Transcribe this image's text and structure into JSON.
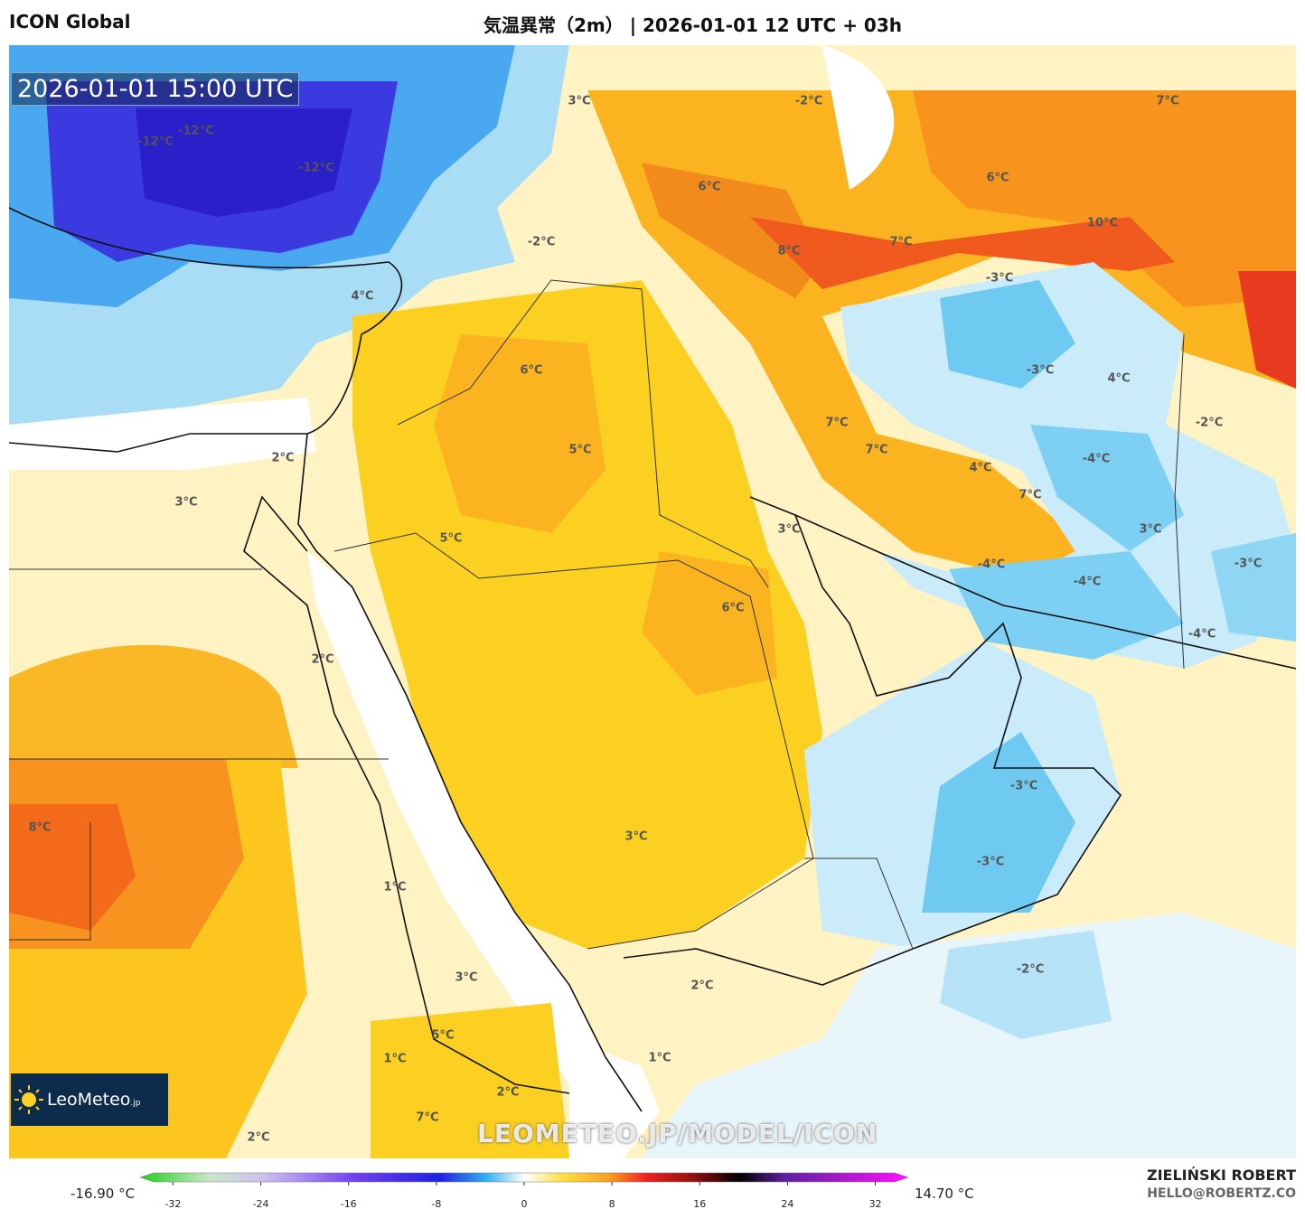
{
  "header": {
    "model": "ICON Global",
    "title": "気温異常（2m） | 2026-01-01 12 UTC + 03h"
  },
  "timestamp": "2026-01-01 15:00 UTC",
  "logo": {
    "name": "LeoMeteo",
    "suffix": ".jp"
  },
  "watermark": "LEOMETEO.JP/MODEL/ICON",
  "map_labels": [
    "-12°C",
    "-12°C",
    "-12°C",
    "3°C",
    "-2°C",
    "7°C",
    "6°C",
    "6°C",
    "10°C",
    "8°C",
    "7°C",
    "-2°C",
    "-3°C",
    "4°C",
    "6°C",
    "-3°C",
    "4°C",
    "-2°C",
    "7°C",
    "5°C",
    "7°C",
    "2°C",
    "4°C",
    "-4°C",
    "7°C",
    "3°C",
    "3°C",
    "3°C",
    "5°C",
    "-4°C",
    "-4°C",
    "-3°C",
    "6°C",
    "-4°C",
    "2°C",
    "-3°C",
    "8°C",
    "3°C",
    "-3°C",
    "1°C",
    "-2°C",
    "2°C",
    "3°C",
    "5°C",
    "1°C",
    "1°C",
    "2°C",
    "7°C",
    "2°C"
  ],
  "colorbar": {
    "min_label": "-16.90 °C",
    "max_label": "14.70 °C",
    "lim": [
      -35,
      35
    ],
    "ticks": [
      -32,
      -24,
      -16,
      -8,
      0,
      8,
      16,
      24,
      32
    ]
  },
  "credits": {
    "author": "ZIELIŃSKI ROBERT",
    "email": "HELLO@ROBERTZ.CO"
  }
}
